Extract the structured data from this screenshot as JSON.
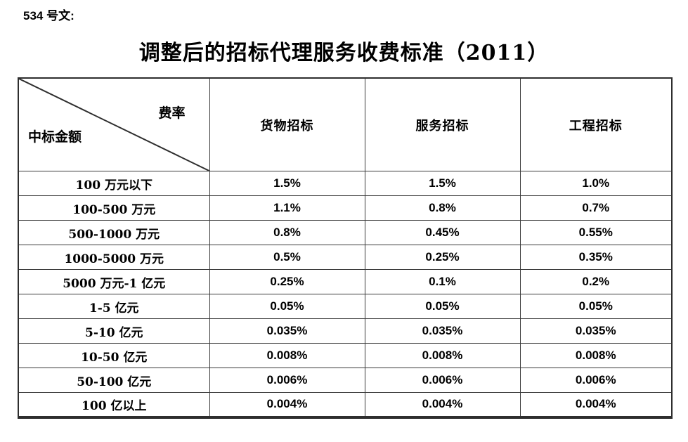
{
  "page": {
    "doc_label": "534 号文:",
    "title": "调整后的招标代理服务收费标准（2011）"
  },
  "table": {
    "corner": {
      "top_right": "费率",
      "bottom_left": "中标金额"
    },
    "columns": [
      "货物招标",
      "服务招标",
      "工程招标"
    ],
    "rows": [
      {
        "label": "100 万元以下",
        "values": [
          "1.5%",
          "1.5%",
          "1.0%"
        ]
      },
      {
        "label": "100-500 万元",
        "values": [
          "1.1%",
          "0.8%",
          "0.7%"
        ]
      },
      {
        "label": "500-1000 万元",
        "values": [
          "0.8%",
          "0.45%",
          "0.55%"
        ]
      },
      {
        "label": "1000-5000 万元",
        "values": [
          "0.5%",
          "0.25%",
          "0.35%"
        ]
      },
      {
        "label": "5000 万元-1 亿元",
        "values": [
          "0.25%",
          "0.1%",
          "0.2%"
        ]
      },
      {
        "label": "1-5 亿元",
        "values": [
          "0.05%",
          "0.05%",
          "0.05%"
        ]
      },
      {
        "label": "5-10 亿元",
        "values": [
          "0.035%",
          "0.035%",
          "0.035%"
        ]
      },
      {
        "label": "10-50 亿元",
        "values": [
          "0.008%",
          "0.008%",
          "0.008%"
        ]
      },
      {
        "label": "50-100 亿元",
        "values": [
          "0.006%",
          "0.006%",
          "0.006%"
        ]
      },
      {
        "label": "100 亿以上",
        "values": [
          "0.004%",
          "0.004%",
          "0.004%"
        ]
      }
    ]
  },
  "colors": {
    "background": "#ffffff",
    "text": "#000000",
    "border": "#3a3a3a"
  }
}
